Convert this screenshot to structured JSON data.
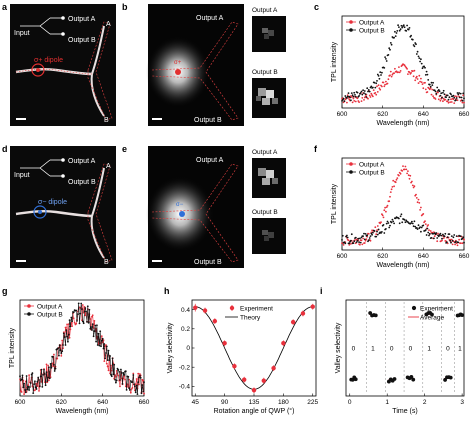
{
  "panels": {
    "a": {
      "label": "a",
      "input": "Input",
      "out_a": "Output A",
      "out_b": "Output B",
      "dipole": "σ+ dipole",
      "end_a": "A",
      "end_b": "B"
    },
    "b": {
      "label": "b",
      "out_a": "Output A",
      "out_b": "Output B",
      "sigma": "σ+",
      "thumb_a": "Output A",
      "thumb_b": "Output B"
    },
    "d": {
      "label": "d",
      "input": "Input",
      "out_a": "Output A",
      "out_b": "Output B",
      "dipole": "σ− dipole",
      "end_a": "A",
      "end_b": "B"
    },
    "e": {
      "label": "e",
      "out_a": "Output A",
      "out_b": "Output B",
      "sigma": "σ−",
      "thumb_a": "Output A",
      "thumb_b": "Output B"
    }
  },
  "colors": {
    "red": "#e8303c",
    "black": "#111111",
    "blue": "#2f6fd8",
    "dipole_red": "#e23030",
    "dashed": "#e04040"
  },
  "chart_data": [
    {
      "id": "c",
      "label": "c",
      "type": "scatter",
      "xlabel": "Wavelength (nm)",
      "ylabel": "TPL intensity",
      "xlim": [
        600,
        660
      ],
      "xticks": [
        600,
        620,
        640,
        660
      ],
      "legend": "top-left",
      "series": [
        {
          "name": "Output A",
          "color": "#e8303c",
          "peak": 630,
          "width": 13,
          "amp": 0.33,
          "base": 0.1
        },
        {
          "name": "Output B",
          "color": "#111111",
          "peak": 630,
          "width": 12,
          "amp": 0.78,
          "base": 0.12
        }
      ]
    },
    {
      "id": "f",
      "label": "f",
      "type": "scatter",
      "xlabel": "Wavelength (nm)",
      "ylabel": "TPL intensity",
      "xlim": [
        600,
        660
      ],
      "xticks": [
        600,
        620,
        640,
        660
      ],
      "legend": "top-left",
      "series": [
        {
          "name": "Output A",
          "color": "#e8303c",
          "peak": 630,
          "width": 11,
          "amp": 0.78,
          "base": 0.1
        },
        {
          "name": "Output B",
          "color": "#111111",
          "peak": 630,
          "width": 13,
          "amp": 0.22,
          "base": 0.12
        }
      ]
    },
    {
      "id": "g",
      "label": "g",
      "type": "line",
      "xlabel": "Wavelength (nm)",
      "ylabel": "TPL intensity",
      "xlim": [
        600,
        660
      ],
      "xticks": [
        600,
        620,
        640,
        660
      ],
      "legend": "top-left",
      "series": [
        {
          "name": "Output A",
          "color": "#e8303c",
          "peak": 630,
          "width": 14,
          "amp": 0.75,
          "base": 0.12
        },
        {
          "name": "Output B",
          "color": "#111111",
          "peak": 630,
          "width": 14,
          "amp": 0.75,
          "base": 0.12
        }
      ]
    },
    {
      "id": "h",
      "label": "h",
      "type": "scatter",
      "xlabel": "Rotation angle of QWP (°)",
      "ylabel": "Valley selectivity",
      "xlim": [
        40,
        230
      ],
      "ylim": [
        -0.5,
        0.5
      ],
      "xticks": [
        45,
        90,
        135,
        180,
        225
      ],
      "yticks": [
        -0.4,
        -0.2,
        0,
        0.2,
        0.4
      ],
      "legend": "top-center",
      "experiment_name": "Experiment",
      "theory_name": "Theory",
      "x": [
        45,
        60,
        75,
        90,
        105,
        120,
        135,
        150,
        165,
        180,
        195,
        210,
        225
      ],
      "y": [
        0.42,
        0.39,
        0.28,
        0.05,
        -0.19,
        -0.33,
        -0.44,
        -0.34,
        -0.21,
        0.05,
        0.27,
        0.36,
        0.43
      ],
      "err": [
        0.04,
        0.03,
        0.03,
        0.03,
        0.03,
        0.03,
        0.03,
        0.03,
        0.03,
        0.03,
        0.03,
        0.03,
        0.03
      ]
    },
    {
      "id": "i",
      "label": "i",
      "type": "scatter",
      "xlabel": "Time (s)",
      "ylabel": "Valley selectivity",
      "xlim": [
        -0.1,
        3.05
      ],
      "ylim": [
        -0.6,
        0.6
      ],
      "xticks": [
        0,
        1,
        2,
        3
      ],
      "legend": "top-right",
      "experiment_name": "Experiment",
      "average_name": "Average",
      "segments": [
        {
          "t0": 0.02,
          "t1": 0.18,
          "v": -0.38,
          "state": "0"
        },
        {
          "t0": 0.52,
          "t1": 0.72,
          "v": 0.42,
          "state": "1"
        },
        {
          "t0": 1.02,
          "t1": 1.22,
          "v": -0.4,
          "state": "0"
        },
        {
          "t0": 1.52,
          "t1": 1.72,
          "v": -0.38,
          "state": "0"
        },
        {
          "t0": 2.02,
          "t1": 2.22,
          "v": 0.42,
          "state": "1"
        },
        {
          "t0": 2.52,
          "t1": 2.72,
          "v": -0.38,
          "state": "0"
        },
        {
          "t0": 2.86,
          "t1": 3.02,
          "v": 0.42,
          "state": "1"
        }
      ],
      "dividers": [
        0.45,
        0.95,
        1.45,
        1.95,
        2.45,
        2.8
      ]
    }
  ]
}
